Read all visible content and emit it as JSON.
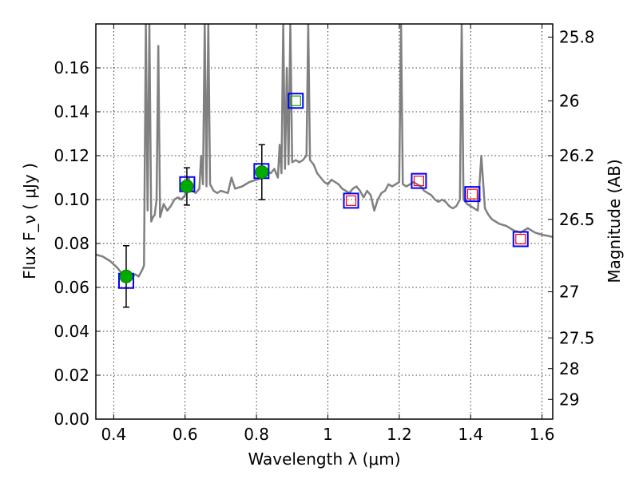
{
  "chart_data": {
    "type": "scatter",
    "xlabel": "Wavelength  λ (μm)",
    "ylabel_left": "Flux  F_ν  ( μJy )",
    "ylabel_right": "Magnitude (AB)",
    "xlim": [
      0.35,
      1.63
    ],
    "ylim": [
      0.0,
      0.18
    ],
    "x_ticks": [
      0.4,
      0.6,
      0.8,
      1.0,
      1.2,
      1.4,
      1.6
    ],
    "x_tick_labels": [
      "0.4",
      "0.6",
      "0.8",
      "1",
      "1.2",
      "1.4",
      "1.6"
    ],
    "y_ticks": [
      0.0,
      0.02,
      0.04,
      0.06,
      0.08,
      0.1,
      0.12,
      0.14,
      0.16
    ],
    "y_tick_labels": [
      "0.00",
      "0.02",
      "0.04",
      "0.06",
      "0.08",
      "0.10",
      "0.12",
      "0.14",
      "0.16"
    ],
    "right_ticks": [
      {
        "label": "25.8",
        "flux": 0.174
      },
      {
        "label": "26",
        "flux": 0.145
      },
      {
        "label": "26.2",
        "flux": 0.12
      },
      {
        "label": "26.5",
        "flux": 0.091
      },
      {
        "label": "27",
        "flux": 0.058
      },
      {
        "label": "27.5",
        "flux": 0.037
      },
      {
        "label": "28",
        "flux": 0.023
      },
      {
        "label": "29",
        "flux": 0.009
      }
    ],
    "grid": true,
    "series": [
      {
        "kind": "model-spectrum",
        "color": "#808080",
        "points": [
          [
            0.35,
            0.075
          ],
          [
            0.37,
            0.074
          ],
          [
            0.39,
            0.072
          ],
          [
            0.41,
            0.069
          ],
          [
            0.42,
            0.067
          ],
          [
            0.43,
            0.064
          ],
          [
            0.44,
            0.063
          ],
          [
            0.45,
            0.064
          ],
          [
            0.46,
            0.066
          ],
          [
            0.47,
            0.065
          ],
          [
            0.48,
            0.068
          ],
          [
            0.485,
            0.07
          ],
          [
            0.49,
            0.18
          ],
          [
            0.495,
            0.095
          ],
          [
            0.5,
            0.18
          ],
          [
            0.505,
            0.09
          ],
          [
            0.51,
            0.092
          ],
          [
            0.515,
            0.093
          ],
          [
            0.52,
            0.1
          ],
          [
            0.525,
            0.17
          ],
          [
            0.53,
            0.092
          ],
          [
            0.54,
            0.098
          ],
          [
            0.55,
            0.095
          ],
          [
            0.56,
            0.097
          ],
          [
            0.57,
            0.1
          ],
          [
            0.58,
            0.101
          ],
          [
            0.59,
            0.1
          ],
          [
            0.6,
            0.102
          ],
          [
            0.61,
            0.11
          ],
          [
            0.62,
            0.104
          ],
          [
            0.63,
            0.103
          ],
          [
            0.64,
            0.105
          ],
          [
            0.645,
            0.12
          ],
          [
            0.65,
            0.107
          ],
          [
            0.655,
            0.18
          ],
          [
            0.66,
            0.106
          ],
          [
            0.665,
            0.18
          ],
          [
            0.67,
            0.107
          ],
          [
            0.68,
            0.104
          ],
          [
            0.69,
            0.103
          ],
          [
            0.7,
            0.104
          ],
          [
            0.72,
            0.103
          ],
          [
            0.73,
            0.11
          ],
          [
            0.74,
            0.105
          ],
          [
            0.76,
            0.106
          ],
          [
            0.78,
            0.108
          ],
          [
            0.8,
            0.109
          ],
          [
            0.82,
            0.11
          ],
          [
            0.83,
            0.113
          ],
          [
            0.84,
            0.112
          ],
          [
            0.85,
            0.114
          ],
          [
            0.86,
            0.11
          ],
          [
            0.865,
            0.125
          ],
          [
            0.87,
            0.112
          ],
          [
            0.875,
            0.18
          ],
          [
            0.88,
            0.114
          ],
          [
            0.885,
            0.16
          ],
          [
            0.89,
            0.116
          ],
          [
            0.895,
            0.18
          ],
          [
            0.9,
            0.117
          ],
          [
            0.91,
            0.118
          ],
          [
            0.92,
            0.117
          ],
          [
            0.93,
            0.118
          ],
          [
            0.94,
            0.12
          ],
          [
            0.945,
            0.18
          ],
          [
            0.95,
            0.118
          ],
          [
            0.96,
            0.116
          ],
          [
            0.97,
            0.112
          ],
          [
            0.98,
            0.11
          ],
          [
            0.99,
            0.108
          ],
          [
            1.0,
            0.107
          ],
          [
            1.01,
            0.109
          ],
          [
            1.02,
            0.108
          ],
          [
            1.03,
            0.107
          ],
          [
            1.04,
            0.105
          ],
          [
            1.05,
            0.104
          ],
          [
            1.06,
            0.103
          ],
          [
            1.07,
            0.105
          ],
          [
            1.08,
            0.106
          ],
          [
            1.09,
            0.104
          ],
          [
            1.1,
            0.101
          ],
          [
            1.11,
            0.104
          ],
          [
            1.12,
            0.102
          ],
          [
            1.13,
            0.095
          ],
          [
            1.14,
            0.1
          ],
          [
            1.15,
            0.103
          ],
          [
            1.16,
            0.104
          ],
          [
            1.17,
            0.107
          ],
          [
            1.18,
            0.106
          ],
          [
            1.19,
            0.107
          ],
          [
            1.2,
            0.108
          ],
          [
            1.205,
            0.18
          ],
          [
            1.21,
            0.107
          ],
          [
            1.22,
            0.106
          ],
          [
            1.23,
            0.107
          ],
          [
            1.24,
            0.108
          ],
          [
            1.25,
            0.107
          ],
          [
            1.26,
            0.106
          ],
          [
            1.27,
            0.104
          ],
          [
            1.28,
            0.103
          ],
          [
            1.29,
            0.102
          ],
          [
            1.3,
            0.1
          ],
          [
            1.31,
            0.099
          ],
          [
            1.32,
            0.1
          ],
          [
            1.33,
            0.099
          ],
          [
            1.34,
            0.097
          ],
          [
            1.35,
            0.096
          ],
          [
            1.36,
            0.097
          ],
          [
            1.37,
            0.1
          ],
          [
            1.375,
            0.18
          ],
          [
            1.38,
            0.1
          ],
          [
            1.39,
            0.098
          ],
          [
            1.4,
            0.097
          ],
          [
            1.41,
            0.096
          ],
          [
            1.42,
            0.095
          ],
          [
            1.43,
            0.12
          ],
          [
            1.44,
            0.096
          ],
          [
            1.45,
            0.093
          ],
          [
            1.46,
            0.091
          ],
          [
            1.47,
            0.09
          ],
          [
            1.48,
            0.089
          ],
          [
            1.5,
            0.088
          ],
          [
            1.52,
            0.086
          ],
          [
            1.54,
            0.085
          ],
          [
            1.56,
            0.087
          ],
          [
            1.58,
            0.085
          ],
          [
            1.6,
            0.084
          ],
          [
            1.63,
            0.083
          ]
        ]
      },
      {
        "kind": "observed",
        "color": "#00aa00",
        "points": [
          {
            "x": 0.435,
            "y": 0.065,
            "err": 0.014
          },
          {
            "x": 0.605,
            "y": 0.106,
            "err": 0.0085
          },
          {
            "x": 0.815,
            "y": 0.1125,
            "err": 0.0125
          }
        ]
      },
      {
        "kind": "model-blue-squares",
        "color": "#0000ff",
        "points": [
          {
            "x": 0.435,
            "y": 0.063
          },
          {
            "x": 0.606,
            "y": 0.107
          },
          {
            "x": 0.814,
            "y": 0.113
          },
          {
            "x": 0.91,
            "y": 0.145
          },
          {
            "x": 1.065,
            "y": 0.0995
          },
          {
            "x": 1.255,
            "y": 0.1085
          },
          {
            "x": 1.405,
            "y": 0.1025
          },
          {
            "x": 1.54,
            "y": 0.082
          }
        ]
      },
      {
        "kind": "model-inner-squares",
        "points": [
          {
            "x": 0.91,
            "y": 0.145,
            "color": "#00aa00"
          },
          {
            "x": 1.065,
            "y": 0.0995,
            "color": "#ff0000"
          },
          {
            "x": 1.255,
            "y": 0.1085,
            "color": "#ff0000"
          },
          {
            "x": 1.405,
            "y": 0.1025,
            "color": "#ff0000"
          },
          {
            "x": 1.54,
            "y": 0.082,
            "color": "#ff0000"
          }
        ]
      }
    ]
  }
}
